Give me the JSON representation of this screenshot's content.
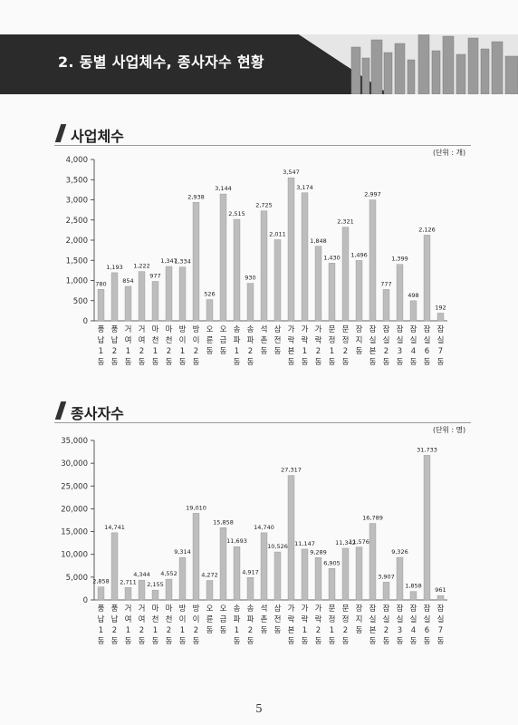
{
  "page": {
    "section_title": "2. 동별 사업체수, 종사자수 현황",
    "page_number": "5"
  },
  "chart_data": [
    {
      "type": "bar",
      "title": "사업체수",
      "unit": "(단위 : 개)",
      "categories": [
        "풍납1동",
        "풍납2동",
        "거여1동",
        "거여2동",
        "마천1동",
        "마천2동",
        "방이1동",
        "방이2동",
        "오륜동",
        "오금동",
        "송파1동",
        "송파2동",
        "석촌동",
        "삼전동",
        "가락본동",
        "가락1동",
        "가락2동",
        "문정1동",
        "문정2동",
        "장지동",
        "잠실본동",
        "잠실2동",
        "잠실3동",
        "잠실4동",
        "잠실6동",
        "잠실7동"
      ],
      "values": [
        780,
        1193,
        854,
        1222,
        977,
        1347,
        1334,
        2938,
        526,
        3144,
        2515,
        930,
        2725,
        2011,
        3547,
        3174,
        1848,
        1430,
        2321,
        1496,
        2997,
        777,
        1399,
        498,
        2126,
        192
      ],
      "value_labels": [
        "780",
        "1,193",
        "854",
        "1,222",
        "977",
        "1,347",
        "1,334",
        "2,938",
        "526",
        "3,144",
        "2,515",
        "930",
        "2,725",
        "2,011",
        "3,547",
        "3,174",
        "1,848",
        "1,430",
        "2,321",
        "1,496",
        "2,997",
        "777",
        "1,399",
        "498",
        "2,126",
        "192"
      ],
      "ylim": [
        0,
        4000
      ],
      "yticks": [
        "0",
        "500",
        "1,000",
        "1,500",
        "2,000",
        "2,500",
        "3,000",
        "3,500",
        "4,000"
      ],
      "bar_color": "#bdbdbd"
    },
    {
      "type": "bar",
      "title": "종사자수",
      "unit": "(단위 : 명)",
      "categories": [
        "풍납1동",
        "풍납2동",
        "거여1동",
        "거여2동",
        "마천1동",
        "마천2동",
        "방이1동",
        "방이2동",
        "오륜동",
        "오금동",
        "송파1동",
        "송파2동",
        "석촌동",
        "삼전동",
        "가락본동",
        "가락1동",
        "가락2동",
        "문정1동",
        "문정2동",
        "장지동",
        "잠실본동",
        "잠실2동",
        "잠실3동",
        "잠실4동",
        "잠실6동",
        "잠실7동"
      ],
      "values": [
        2858,
        14741,
        2711,
        4344,
        2155,
        4552,
        9314,
        19010,
        4272,
        15858,
        11693,
        4917,
        14740,
        10526,
        27317,
        11147,
        9289,
        6905,
        11342,
        11576,
        16789,
        3907,
        9326,
        1858,
        31733,
        961
      ],
      "value_labels": [
        "2,858",
        "14,741",
        "2,711",
        "4,344",
        "2,155",
        "4,552",
        "9,314",
        "19,010",
        "4,272",
        "15,858",
        "11,693",
        "4,917",
        "14,740",
        "10,526",
        "27,317",
        "11,147",
        "9,289",
        "6,905",
        "11,342",
        "11,576",
        "16,789",
        "3,907",
        "9,326",
        "1,858",
        "31,733",
        "961"
      ],
      "ylim": [
        0,
        35000
      ],
      "yticks": [
        "0",
        "5,000",
        "10,000",
        "15,000",
        "20,000",
        "25,000",
        "30,000",
        "35,000"
      ],
      "bar_color": "#bdbdbd"
    }
  ]
}
